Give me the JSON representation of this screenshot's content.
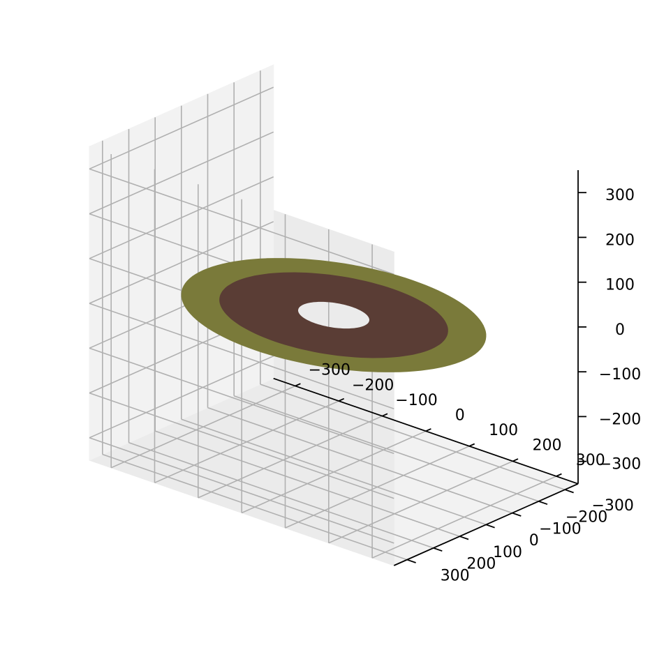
{
  "chart_data": {
    "type": "surface3d",
    "title": "",
    "xlabel": "",
    "ylabel": "",
    "zlabel": "",
    "xlim": [
      -350,
      350
    ],
    "ylim": [
      -350,
      350
    ],
    "zlim": [
      -350,
      350
    ],
    "grid": true,
    "x_ticks": [
      {
        "value": -300,
        "label": "−300"
      },
      {
        "value": -200,
        "label": "−200"
      },
      {
        "value": -100,
        "label": "−100"
      },
      {
        "value": 0,
        "label": "0"
      },
      {
        "value": 100,
        "label": "100"
      },
      {
        "value": 200,
        "label": "200"
      },
      {
        "value": 300,
        "label": "300"
      }
    ],
    "y_ticks": [
      {
        "value": -300,
        "label": "−300"
      },
      {
        "value": -200,
        "label": "−200"
      },
      {
        "value": -100,
        "label": "−100"
      },
      {
        "value": 0,
        "label": "0"
      },
      {
        "value": 100,
        "label": "100"
      },
      {
        "value": 200,
        "label": "200"
      },
      {
        "value": 300,
        "label": "300"
      }
    ],
    "z_ticks": [
      {
        "value": -300,
        "label": "−300"
      },
      {
        "value": -200,
        "label": "−200"
      },
      {
        "value": -100,
        "label": "−100"
      },
      {
        "value": 0,
        "label": "0"
      },
      {
        "value": 100,
        "label": "100"
      },
      {
        "value": 200,
        "label": "200"
      },
      {
        "value": 300,
        "label": "300"
      }
    ],
    "surfaces": [
      {
        "shape": "annulus",
        "inner_radius": 200,
        "outer_radius": 300,
        "z": 0,
        "color": "#7a7a3a"
      },
      {
        "shape": "annulus",
        "inner_radius": 70,
        "outer_radius": 225,
        "z": 0,
        "color": "#5a3d35"
      }
    ]
  }
}
